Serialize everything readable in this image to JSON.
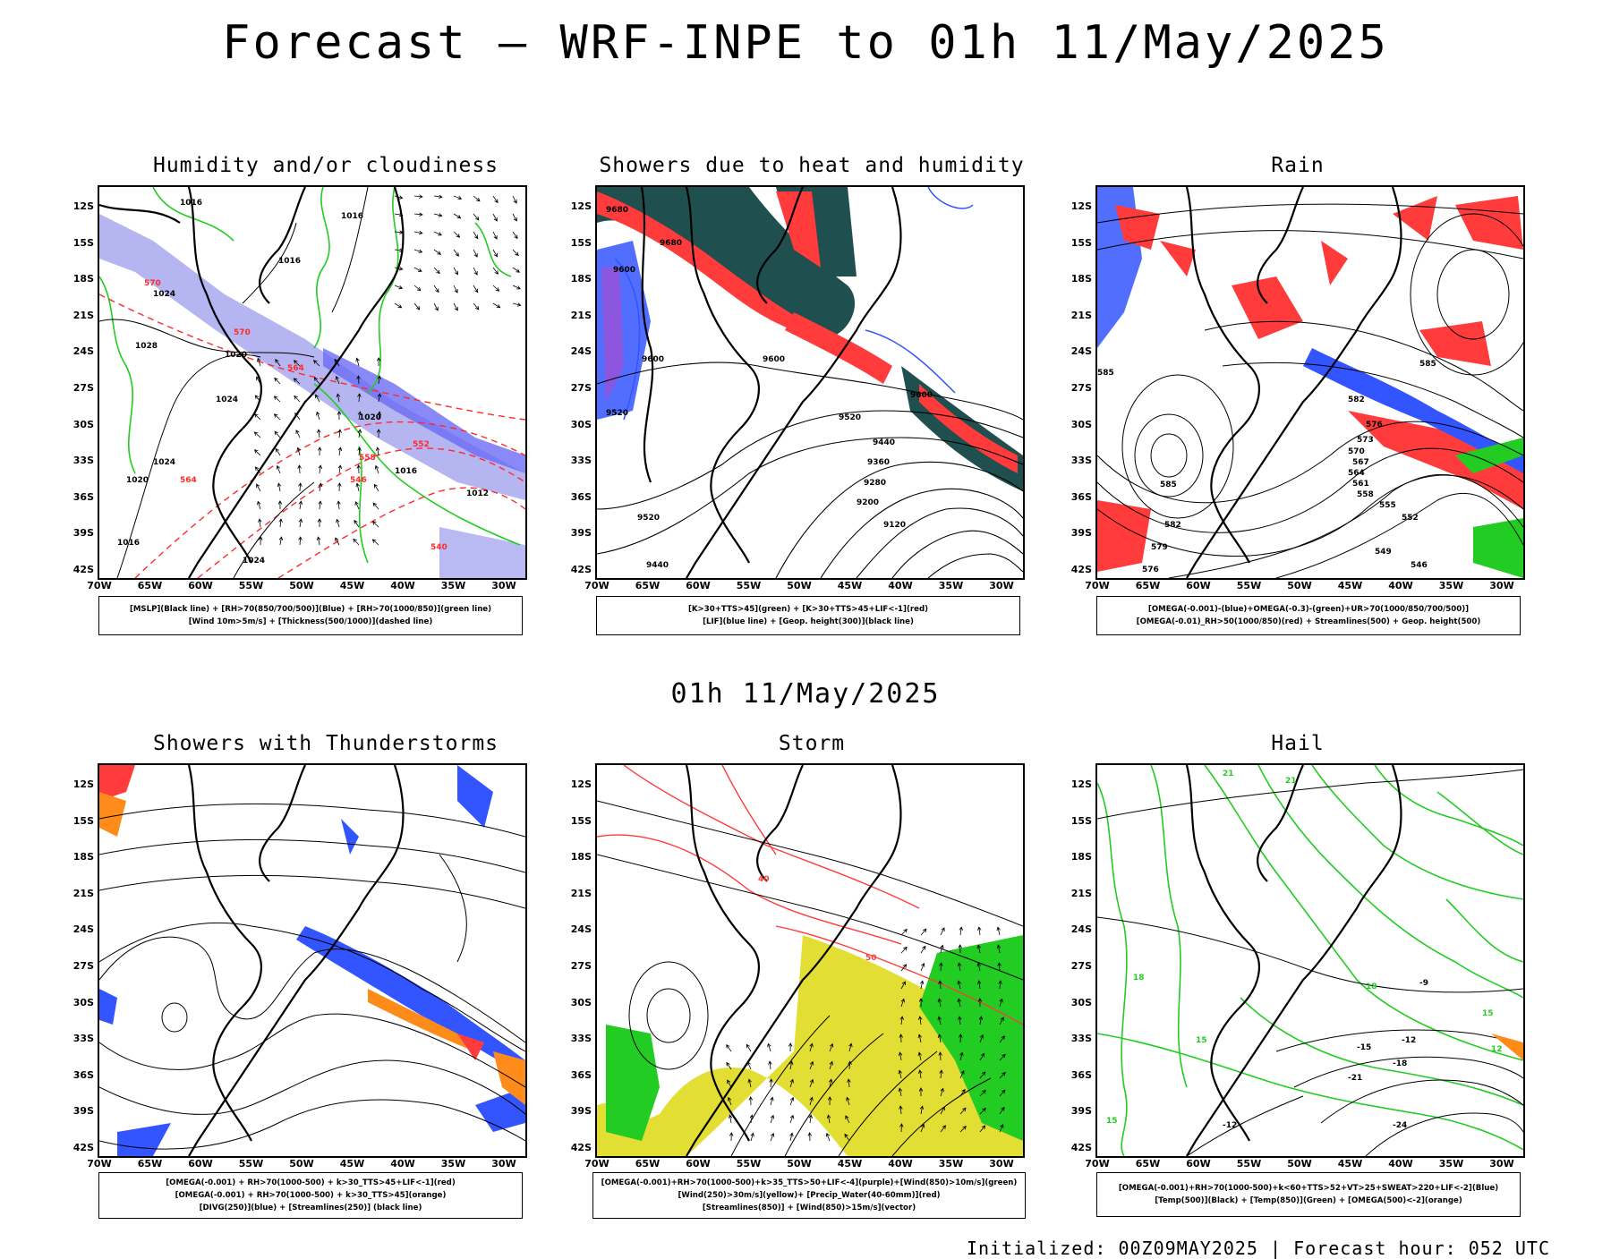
{
  "page": {
    "title": "Forecast – WRF-INPE to 01h 11/May/2025",
    "mid_title": "01h 11/May/2025",
    "footer": "Initialized: 00Z09MAY2025 | Forecast hour: 052 UTC"
  },
  "axes": {
    "lat_labels": [
      "12S",
      "15S",
      "18S",
      "21S",
      "24S",
      "27S",
      "30S",
      "33S",
      "36S",
      "39S",
      "42S"
    ],
    "lon_labels": [
      "70W",
      "65W",
      "60W",
      "55W",
      "50W",
      "45W",
      "40W",
      "35W",
      "30W"
    ]
  },
  "panels": [
    {
      "title": "Humidity and/or cloudiness",
      "legend": [
        "[MSLP](Black line) + [RH>70(850/700/500)](Blue) + [RH>70(1000/850)](green line)",
        "[Wind 10m>5m/s] + [Thickness(500/1000)](dashed line)"
      ],
      "contour_labels": [
        "1016",
        "1020",
        "1024",
        "1028",
        "1012",
        "570",
        "564",
        "558",
        "552",
        "546",
        "540",
        "80"
      ]
    },
    {
      "title": "Showers due to heat and humidity",
      "legend": [
        "[K>30+TTS>45](green) + [K>30+TTS>45+LIF<-1](red)",
        "[LIF](blue line) + [Geop. height(300)](black line)"
      ],
      "contour_labels": [
        "9680",
        "9600",
        "9520",
        "9440",
        "9360",
        "9280",
        "9200",
        "9120"
      ]
    },
    {
      "title": "Rain",
      "legend": [
        "[OMEGA(-0.001)-(blue)+OMEGA(-0.3)-(green)+UR>70(1000/850/700/500)]",
        "[OMEGA(-0.01)_RH>50(1000/850)(red) + Streamlines(500) + Geop. height(500)"
      ],
      "contour_labels": [
        "585",
        "582",
        "579",
        "576",
        "573",
        "570",
        "567",
        "564",
        "561",
        "558",
        "555",
        "552",
        "549",
        "546"
      ]
    },
    {
      "title": "Showers with Thunderstorms",
      "legend": [
        "[OMEGA(-0.001) + RH>70(1000-500) + k>30_TTS>45+LIF<-1](red)",
        "[OMEGA(-0.001) + RH>70(1000-500) + k>30_TTS>45](orange)",
        "[DIVG(250)](blue) + [Streamlines(250)] (black line)"
      ],
      "contour_labels": []
    },
    {
      "title": "Storm",
      "legend": [
        "[OMEGA(-0.001)+RH>70(1000-500)+k>35_TTS>50+LIF<-4](purple)+[Wind(850)>10m/s](green)",
        "[Wind(250)>30m/s](yellow)+ [Precip_Water(40-60mm)](red)",
        "[Streamlines(850)] + [Wind(850)>15m/s](vector)"
      ],
      "contour_labels": [
        "40",
        "50"
      ]
    },
    {
      "title": "Hail",
      "legend": [
        "[OMEGA(-0.001)+RH>70(1000-500)+k<60+TTS>52+VT>25+SWEAT>220+LIF<-2](Blue)",
        "[Temp(500)](Black) + [Temp(850)](Green) + [OMEGA(500)<-2](orange)"
      ],
      "contour_labels": [
        "21",
        "18",
        "15",
        "12",
        "9",
        "-9",
        "-12",
        "-15",
        "-18",
        "-21",
        "-24"
      ]
    }
  ],
  "colors": {
    "coast": "#000000",
    "green": "#22cc22",
    "blue": "#3355ff",
    "red": "#ff3b3b",
    "dark_teal": "#1f4f4f",
    "orange": "#ff8c1a",
    "yellow": "#e3de34",
    "lavender": "#a8a8f0",
    "dash_red": "#ff2a2a"
  }
}
